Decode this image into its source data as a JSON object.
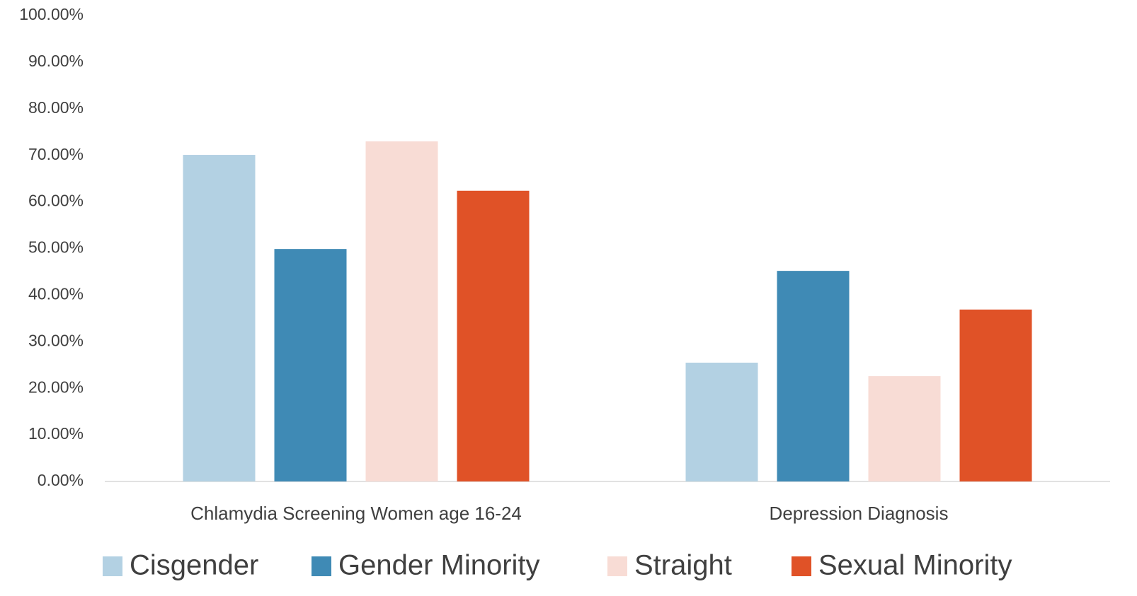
{
  "chart_data": {
    "type": "bar",
    "categories": [
      "Chlamydia Screening Women age 16-24",
      "Depression Diagnosis"
    ],
    "series": [
      {
        "name": "Cisgender",
        "color": "#b3d1e3",
        "values": [
          70.1,
          25.5
        ]
      },
      {
        "name": "Gender Minority",
        "color": "#3f8ab5",
        "values": [
          49.9,
          45.2
        ]
      },
      {
        "name": "Straight",
        "color": "#f8dcd5",
        "values": [
          73.0,
          22.6
        ]
      },
      {
        "name": "Sexual Minority",
        "color": "#e05227",
        "values": [
          62.4,
          36.9
        ]
      }
    ],
    "ylim": [
      0,
      100
    ],
    "yticks": [
      {
        "value": 0,
        "label": "0.00%"
      },
      {
        "value": 10,
        "label": "10.00%"
      },
      {
        "value": 20,
        "label": "20.00%"
      },
      {
        "value": 30,
        "label": "30.00%"
      },
      {
        "value": 40,
        "label": "40.00%"
      },
      {
        "value": 50,
        "label": "50.00%"
      },
      {
        "value": 60,
        "label": "60.00%"
      },
      {
        "value": 70,
        "label": "70.00%"
      },
      {
        "value": 80,
        "label": "80.00%"
      },
      {
        "value": 90,
        "label": "90.00%"
      },
      {
        "value": 100,
        "label": "100.00%"
      }
    ],
    "grid": false,
    "legend": "bottom"
  }
}
